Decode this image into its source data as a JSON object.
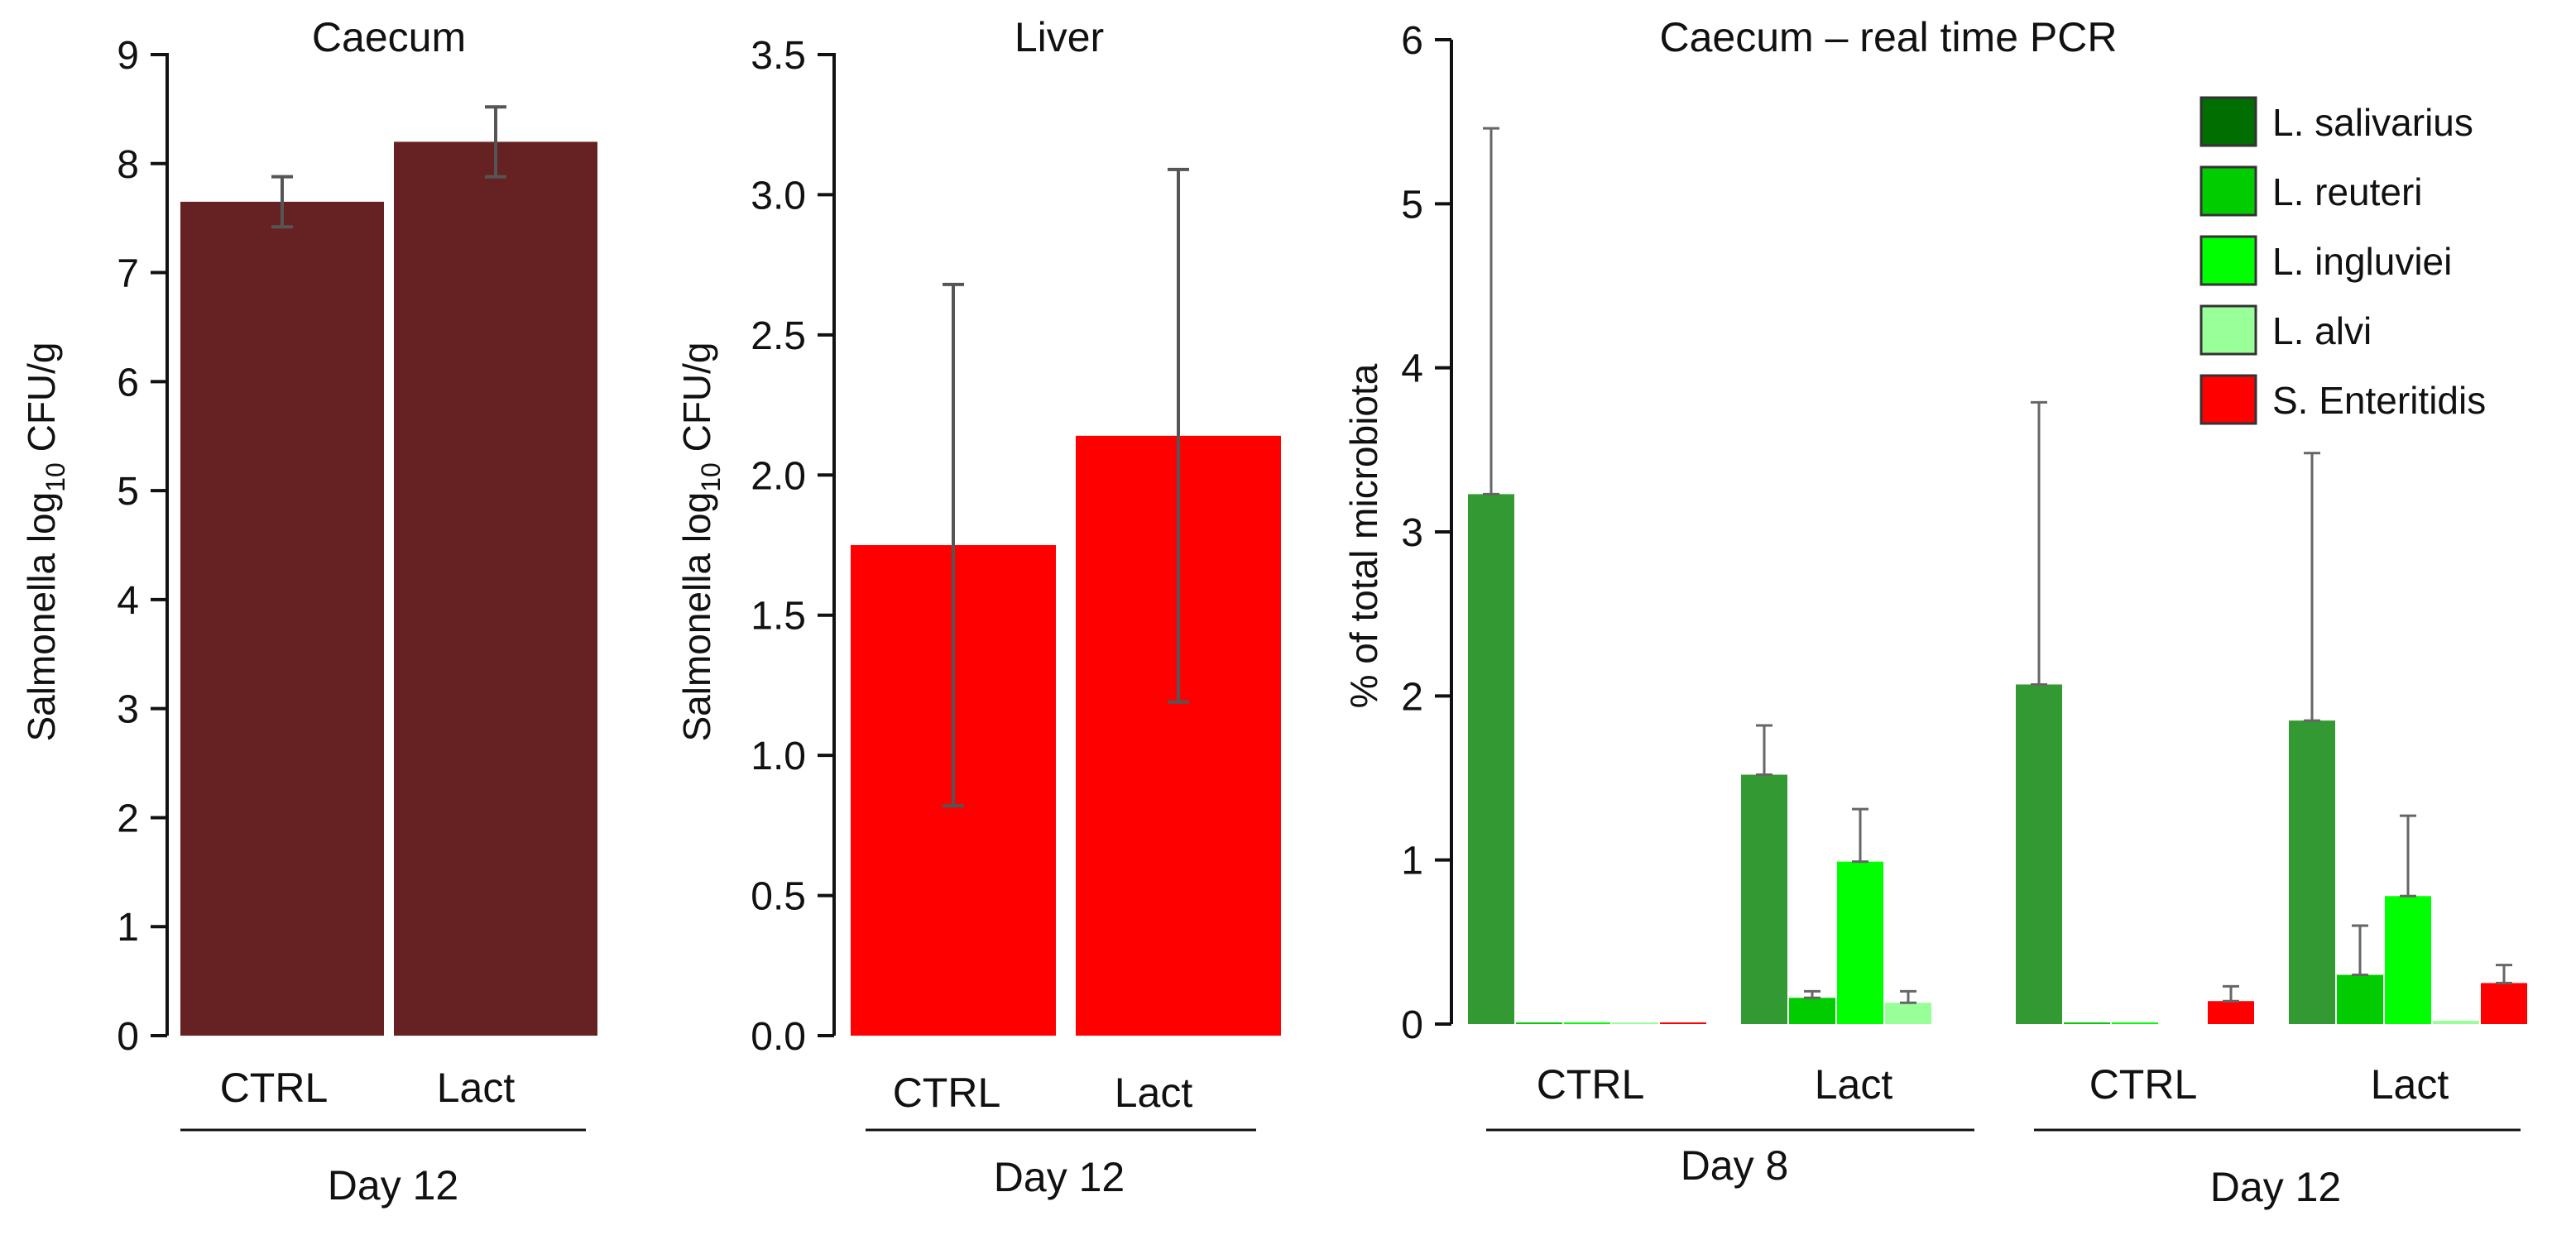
{
  "chart_data": [
    {
      "type": "bar",
      "title": "Caecum",
      "ylabel": "Salmonella log10 CFU/g",
      "ylabel_prefix": "Salmonella log",
      "ylabel_sub": "10",
      "ylabel_suffix": " CFU/g",
      "ylim": [
        0,
        9
      ],
      "yticks": [
        "0",
        "1",
        "2",
        "3",
        "4",
        "5",
        "6",
        "7",
        "8",
        "9"
      ],
      "categories": [
        "CTRL",
        "Lact"
      ],
      "group_label": "Day 12",
      "values": [
        7.65,
        8.2
      ],
      "errors": [
        0.23,
        0.32
      ],
      "color": "#662222"
    },
    {
      "type": "bar",
      "title": "Liver",
      "ylabel": "Salmonella log10 CFU/g",
      "ylabel_prefix": "Salmonella log",
      "ylabel_sub": "10",
      "ylabel_suffix": " CFU/g",
      "ylim": [
        0,
        3.5
      ],
      "yticks": [
        "0.0",
        "0.5",
        "1.0",
        "1.5",
        "2.0",
        "2.5",
        "3.0",
        "3.5"
      ],
      "categories": [
        "CTRL",
        "Lact"
      ],
      "group_label": "Day 12",
      "values": [
        1.75,
        2.14
      ],
      "errors": [
        0.93,
        0.95
      ],
      "color": "#ff0000"
    },
    {
      "type": "bar",
      "title": "Caecum – real time PCR",
      "ylabel": "% of total microbiota",
      "ylim": [
        0,
        6
      ],
      "yticks": [
        "0",
        "1",
        "2",
        "3",
        "4",
        "5",
        "6"
      ],
      "categories": [
        "CTRL",
        "Lact",
        "CTRL",
        "Lact"
      ],
      "groups": [
        {
          "label": "Day 8",
          "span": [
            0,
            1
          ]
        },
        {
          "label": "Day 12",
          "span": [
            2,
            3
          ]
        }
      ],
      "series": [
        {
          "name": "L. salivarius",
          "color": "#339933",
          "legend_color": "#006e00",
          "values": [
            3.23,
            1.52,
            2.07,
            1.85
          ],
          "errors": [
            2.23,
            0.3,
            1.72,
            1.63
          ]
        },
        {
          "name": "L. reuteri",
          "color": "#00cc00",
          "legend_color": "#00cc00",
          "values": [
            0.01,
            0.16,
            0.01,
            0.3
          ],
          "errors": [
            0,
            0.04,
            0,
            0.3
          ]
        },
        {
          "name": "L. ingluviei",
          "color": "#00ff00",
          "legend_color": "#00ff00",
          "values": [
            0.01,
            0.99,
            0.01,
            0.78
          ],
          "errors": [
            0,
            0.32,
            0,
            0.49
          ]
        },
        {
          "name": "L. alvi",
          "color": "#99ff99",
          "legend_color": "#99ff99",
          "values": [
            0.01,
            0.13,
            0.0,
            0.02
          ],
          "errors": [
            0,
            0.07,
            0,
            0
          ]
        },
        {
          "name": "S. Enteritidis",
          "color": "#ff0000",
          "legend_color": "#ff0000",
          "values": [
            0.01,
            0.0,
            0.14,
            0.25
          ],
          "errors": [
            0,
            0,
            0.09,
            0.11
          ]
        }
      ]
    }
  ]
}
